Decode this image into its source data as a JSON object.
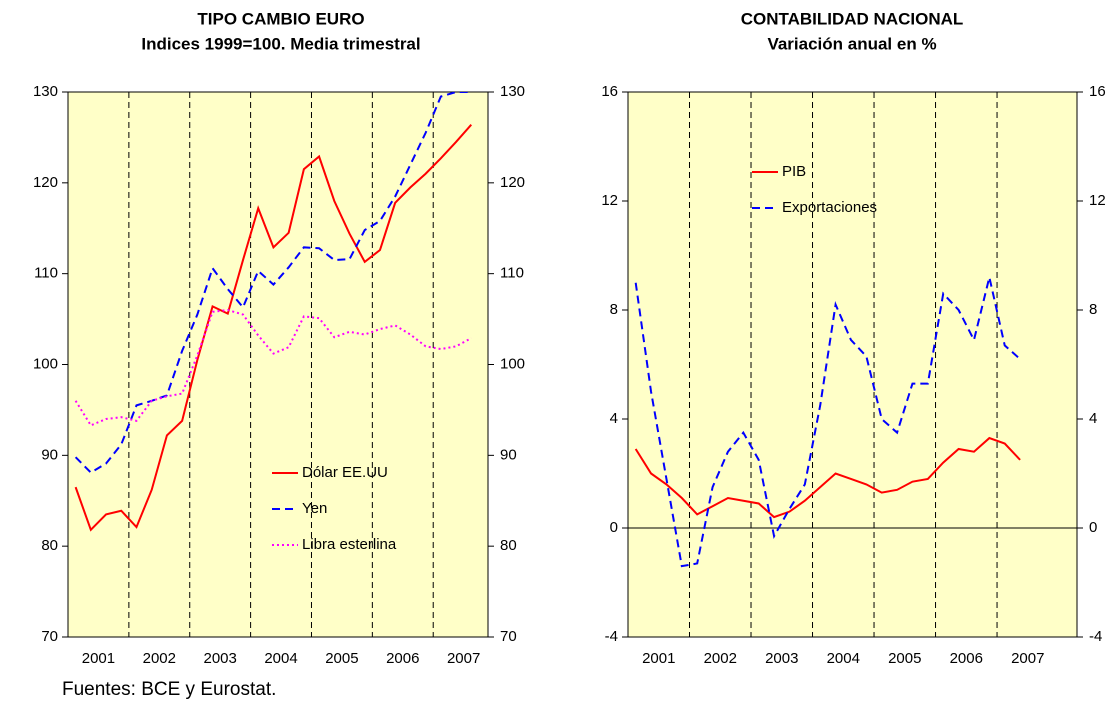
{
  "chart_data": [
    {
      "type": "line",
      "title": "TIPO CAMBIO EURO",
      "subtitle": "Indices 1999=100. Media trimestral",
      "legend": "lower-right",
      "x": [
        2001.125,
        2001.375,
        2001.625,
        2001.875,
        2002.125,
        2002.375,
        2002.625,
        2002.875,
        2003.125,
        2003.375,
        2003.625,
        2003.875,
        2004.125,
        2004.375,
        2004.625,
        2004.875,
        2005.125,
        2005.375,
        2005.625,
        2005.875,
        2006.125,
        2006.375,
        2006.625,
        2006.875,
        2007.125,
        2007.375,
        2007.625
      ],
      "xlim": [
        2001,
        2007.9
      ],
      "xticks": [
        {
          "value": 2001.5,
          "label": "2001"
        },
        {
          "value": 2002.5,
          "label": "2002"
        },
        {
          "value": 2003.5,
          "label": "2003"
        },
        {
          "value": 2004.5,
          "label": "2004"
        },
        {
          "value": 2005.5,
          "label": "2005"
        },
        {
          "value": 2006.5,
          "label": "2006"
        },
        {
          "value": 2007.5,
          "label": "2007"
        }
      ],
      "xgrid": [
        2002,
        2003,
        2004,
        2005,
        2006,
        2007
      ],
      "ylim": [
        70,
        130
      ],
      "yticks": [
        70,
        80,
        90,
        100,
        110,
        120,
        130
      ],
      "series": [
        {
          "name": "Dólar EE.UU",
          "color": "#ff0000",
          "style": "solid",
          "values": [
            86.5,
            81.8,
            83.5,
            83.9,
            82.1,
            86.2,
            92.2,
            93.8,
            100.5,
            106.4,
            105.6,
            111.5,
            117.2,
            112.9,
            114.5,
            121.5,
            122.9,
            118,
            114.4,
            111.3,
            112.6,
            117.8,
            119.5,
            121,
            122.7,
            124.5,
            126.4
          ]
        },
        {
          "name": "Yen",
          "color": "#0000ff",
          "style": "dashed",
          "values": [
            89.8,
            88.1,
            89.1,
            91.2,
            95.5,
            96,
            96.6,
            101.5,
            105.5,
            110.6,
            108.3,
            106.3,
            110.3,
            108.8,
            110.7,
            112.9,
            112.8,
            111.5,
            111.6,
            114.8,
            115.8,
            118.5,
            122,
            125.5,
            129.5,
            130,
            130
          ]
        },
        {
          "name": "Libra esterlina",
          "color": "#ff00ff",
          "style": "dotted",
          "values": [
            96,
            93.3,
            94,
            94.2,
            93.8,
            96,
            96.5,
            96.8,
            101,
            105.8,
            106,
            105.5,
            103.2,
            101.2,
            101.9,
            105.3,
            105.1,
            103,
            103.6,
            103.3,
            103.9,
            104.3,
            103.3,
            102,
            101.7,
            102,
            102.9
          ]
        }
      ]
    },
    {
      "type": "line",
      "title": "CONTABILIDAD NACIONAL",
      "subtitle": "Variación anual en %",
      "legend": "upper-left",
      "x": [
        2001.125,
        2001.375,
        2001.625,
        2001.875,
        2002.125,
        2002.375,
        2002.625,
        2002.875,
        2003.125,
        2003.375,
        2003.625,
        2003.875,
        2004.125,
        2004.375,
        2004.625,
        2004.875,
        2005.125,
        2005.375,
        2005.625,
        2005.875,
        2006.125,
        2006.375,
        2006.625,
        2006.875,
        2007.125,
        2007.375
      ],
      "xlim": [
        2001,
        2008.3
      ],
      "xticks": [
        {
          "value": 2001.5,
          "label": "2001"
        },
        {
          "value": 2002.5,
          "label": "2002"
        },
        {
          "value": 2003.5,
          "label": "2003"
        },
        {
          "value": 2004.5,
          "label": "2004"
        },
        {
          "value": 2005.5,
          "label": "2005"
        },
        {
          "value": 2006.5,
          "label": "2006"
        },
        {
          "value": 2007.5,
          "label": "2007"
        }
      ],
      "xgrid": [
        2002,
        2003,
        2004,
        2005,
        2006,
        2007
      ],
      "ylim": [
        -4,
        16
      ],
      "yticks": [
        -4,
        0,
        4,
        8,
        12,
        16
      ],
      "zero_line": 0,
      "series": [
        {
          "name": "PIB",
          "color": "#ff0000",
          "style": "solid",
          "values": [
            2.9,
            2.0,
            1.6,
            1.1,
            0.5,
            0.8,
            1.1,
            1.0,
            0.9,
            0.4,
            0.6,
            1.0,
            1.5,
            2.0,
            1.8,
            1.6,
            1.3,
            1.4,
            1.7,
            1.8,
            2.4,
            2.9,
            2.8,
            3.3,
            3.1,
            2.5
          ]
        },
        {
          "name": "Exportaciones",
          "color": "#0000ff",
          "style": "dashed",
          "values": [
            9.0,
            5.0,
            1.8,
            -1.4,
            -1.3,
            1.5,
            2.8,
            3.5,
            2.5,
            -0.3,
            0.7,
            1.6,
            4.5,
            8.2,
            6.9,
            6.3,
            4.0,
            3.5,
            5.3,
            5.3,
            8.6,
            8.0,
            6.9,
            9.2,
            6.7,
            6.2
          ]
        }
      ]
    }
  ],
  "source": "Fuentes: BCE y Eurostat."
}
